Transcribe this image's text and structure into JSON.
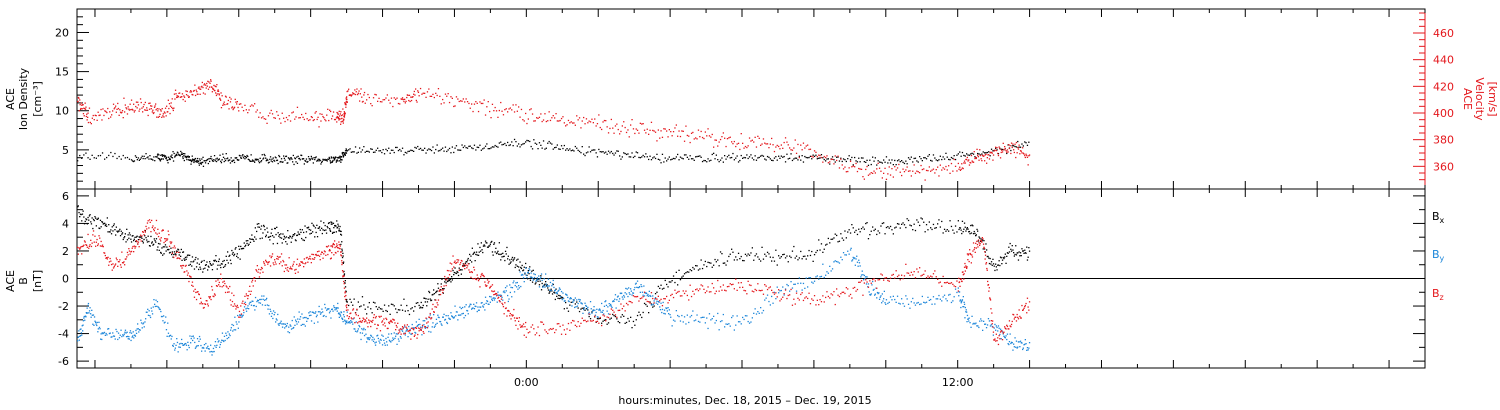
{
  "colors": {
    "black": "#000000",
    "red": "#e4171c",
    "blue": "#1c86d9"
  },
  "footer": {
    "xlabel": "hours:minutes, Dec. 18, 2015 – Dec. 19, 2015"
  },
  "chart_data": [
    {
      "type": "scatter",
      "title": "",
      "xlabel": "hours:minutes, Dec. 18, 2015 – Dec. 19, 2015",
      "x_range_hours": [
        -12.5,
        25
      ],
      "x_ticks": [
        {
          "value": 0,
          "label": "0:00"
        },
        {
          "value": 12,
          "label": "12:00"
        }
      ],
      "y_left": {
        "label_lines": [
          "ACE",
          "Ion Density",
          "[cm⁻³]"
        ],
        "range": [
          0,
          23
        ],
        "ticks": [
          5,
          10,
          15,
          20
        ]
      },
      "y_right": {
        "label_lines": [
          "ACE",
          "Velocity",
          "[km/s]"
        ],
        "range": [
          343,
          478
        ],
        "ticks": [
          360,
          380,
          400,
          420,
          440,
          460
        ]
      },
      "series": [
        {
          "axis": "left",
          "color": "#000000",
          "points": [
            [
              -12.5,
              4.2
            ],
            [
              -11,
              4.0
            ],
            [
              -10.3,
              4.1
            ],
            [
              -10,
              4.0
            ],
            [
              -9.6,
              4.5
            ],
            [
              -9.3,
              3.8
            ],
            [
              -9.0,
              3.5
            ],
            [
              -8.5,
              4.0
            ],
            [
              -8,
              3.9
            ],
            [
              -7.5,
              4.0
            ],
            [
              -7,
              3.9
            ],
            [
              -6.5,
              3.8
            ],
            [
              -6,
              3.8
            ],
            [
              -5.5,
              3.9
            ],
            [
              -5.2,
              3.9
            ],
            [
              -5.0,
              5.0
            ],
            [
              -4,
              5.0
            ],
            [
              -3,
              5.1
            ],
            [
              -2,
              5.3
            ],
            [
              -1,
              5.4
            ],
            [
              0,
              6.0
            ],
            [
              1,
              5.2
            ],
            [
              2,
              4.8
            ],
            [
              3,
              4.2
            ],
            [
              4,
              4.0
            ],
            [
              5,
              4.0
            ],
            [
              6,
              4.2
            ],
            [
              7,
              4.0
            ],
            [
              8,
              4.0
            ],
            [
              9,
              3.8
            ],
            [
              10,
              3.6
            ],
            [
              11,
              3.8
            ],
            [
              12,
              4.3
            ],
            [
              13,
              4.8
            ],
            [
              14,
              6.0
            ]
          ]
        },
        {
          "axis": "right",
          "color": "#e4171c",
          "points": [
            [
              -12.5,
              409
            ],
            [
              -12.2,
              397
            ],
            [
              -11.5,
              403
            ],
            [
              -11,
              405
            ],
            [
              -10.5,
              404
            ],
            [
              -10.1,
              401
            ],
            [
              -9.7,
              414
            ],
            [
              -9.2,
              416
            ],
            [
              -8.8,
              422
            ],
            [
              -8.5,
              411
            ],
            [
              -8,
              404
            ],
            [
              -7,
              398
            ],
            [
              -6,
              398
            ],
            [
              -5.3,
              397
            ],
            [
              -5.1,
              397
            ],
            [
              -5,
              414
            ],
            [
              -4.5,
              413
            ],
            [
              -3.5,
              410
            ],
            [
              -3,
              414
            ],
            [
              -2,
              410
            ],
            [
              -1,
              404
            ],
            [
              0,
              399
            ],
            [
              1,
              397
            ],
            [
              2,
              392
            ],
            [
              3,
              389
            ],
            [
              4,
              385
            ],
            [
              5,
              382
            ],
            [
              6,
              379
            ],
            [
              7,
              377
            ],
            [
              8,
              371
            ],
            [
              9,
              358
            ],
            [
              10,
              356
            ],
            [
              11,
              357
            ],
            [
              12,
              360
            ],
            [
              12.5,
              366
            ],
            [
              13,
              370
            ],
            [
              13.5,
              375
            ],
            [
              14,
              366
            ]
          ]
        }
      ]
    },
    {
      "type": "scatter",
      "title": "",
      "xlabel": "hours:minutes, Dec. 18, 2015 – Dec. 19, 2015",
      "x_range_hours": [
        -12.5,
        25
      ],
      "x_ticks": [
        {
          "value": 0,
          "label": "0:00"
        },
        {
          "value": 12,
          "label": "12:00"
        }
      ],
      "y": {
        "label_lines": [
          "ACE",
          "B",
          "[nT]"
        ],
        "range": [
          -6.5,
          6.5
        ],
        "ticks": [
          -6,
          -4,
          -2,
          0,
          2,
          4,
          6
        ],
        "zero_line": true
      },
      "legend": {
        "placement": "right",
        "entries": [
          {
            "base": "B",
            "sub": "x",
            "color": "#000000"
          },
          {
            "base": "B",
            "sub": "y",
            "color": "#1c86d9"
          },
          {
            "base": "B",
            "sub": "z",
            "color": "#e4171c"
          }
        ]
      },
      "series": [
        {
          "name": "Bx",
          "color": "#000000",
          "points": [
            [
              -12.5,
              4.8
            ],
            [
              -12,
              4.2
            ],
            [
              -11.5,
              3.6
            ],
            [
              -11,
              3.0
            ],
            [
              -10.5,
              2.8
            ],
            [
              -10,
              2.2
            ],
            [
              -9.5,
              1.5
            ],
            [
              -9,
              1.0
            ],
            [
              -8.5,
              1.2
            ],
            [
              -8,
              2.0
            ],
            [
              -7.5,
              3.5
            ],
            [
              -7,
              3.2
            ],
            [
              -6.5,
              3.0
            ],
            [
              -6,
              3.6
            ],
            [
              -5.5,
              3.8
            ],
            [
              -5.2,
              3.8
            ],
            [
              -5,
              -1.8
            ],
            [
              -4,
              -2.2
            ],
            [
              -3,
              -2.0
            ],
            [
              -2.5,
              -1.0
            ],
            [
              -2,
              0.5
            ],
            [
              -1.5,
              1.8
            ],
            [
              -1,
              2.5
            ],
            [
              -0.5,
              1.5
            ],
            [
              0,
              0.5
            ],
            [
              0.5,
              -0.5
            ],
            [
              1,
              -1.5
            ],
            [
              2,
              -2.8
            ],
            [
              3,
              -3.0
            ],
            [
              4,
              0.0
            ],
            [
              5,
              1.0
            ],
            [
              6,
              1.8
            ],
            [
              7,
              1.5
            ],
            [
              8,
              2.0
            ],
            [
              9,
              3.5
            ],
            [
              10,
              3.8
            ],
            [
              11,
              3.8
            ],
            [
              12,
              3.7
            ],
            [
              12.5,
              3.5
            ],
            [
              13,
              0.8
            ],
            [
              13.5,
              2.2
            ],
            [
              14,
              1.8
            ]
          ]
        },
        {
          "name": "By",
          "color": "#1c86d9",
          "points": [
            [
              -12.5,
              -4.5
            ],
            [
              -12.2,
              -2.0
            ],
            [
              -11.8,
              -4.0
            ],
            [
              -11.2,
              -4.2
            ],
            [
              -10.8,
              -3.8
            ],
            [
              -10.3,
              -1.5
            ],
            [
              -9.8,
              -5.0
            ],
            [
              -9.3,
              -4.5
            ],
            [
              -8.8,
              -5.2
            ],
            [
              -8.3,
              -4.0
            ],
            [
              -7.8,
              -2.0
            ],
            [
              -7.3,
              -1.5
            ],
            [
              -6.8,
              -3.5
            ],
            [
              -6.3,
              -3.0
            ],
            [
              -5.8,
              -2.5
            ],
            [
              -5.3,
              -2.2
            ],
            [
              -5,
              -3.0
            ],
            [
              -4.5,
              -4.2
            ],
            [
              -4,
              -4.5
            ],
            [
              -3.5,
              -4.0
            ],
            [
              -3,
              -3.5
            ],
            [
              -2.5,
              -3.0
            ],
            [
              -2,
              -2.5
            ],
            [
              -1.5,
              -2.0
            ],
            [
              -1,
              -1.5
            ],
            [
              -0.5,
              -1.0
            ],
            [
              0,
              0.5
            ],
            [
              0.5,
              -0.2
            ],
            [
              1,
              -1.2
            ],
            [
              1.5,
              -1.8
            ],
            [
              2,
              -2.5
            ],
            [
              2.5,
              -1.5
            ],
            [
              3,
              -0.5
            ],
            [
              3.5,
              -1.5
            ],
            [
              4,
              -2.8
            ],
            [
              5,
              -3.0
            ],
            [
              6,
              -3.2
            ],
            [
              7,
              -1.0
            ],
            [
              8,
              0.0
            ],
            [
              9,
              2.0
            ],
            [
              9.5,
              -0.5
            ],
            [
              10,
              -1.5
            ],
            [
              11,
              -1.8
            ],
            [
              12,
              -1.0
            ],
            [
              12.3,
              -3.0
            ],
            [
              13,
              -3.5
            ],
            [
              13.5,
              -4.5
            ],
            [
              14,
              -5.0
            ]
          ]
        },
        {
          "name": "Bz",
          "color": "#e4171c",
          "points": [
            [
              -12.5,
              2.0
            ],
            [
              -12,
              3.0
            ],
            [
              -11.5,
              1.0
            ],
            [
              -11,
              2.0
            ],
            [
              -10.5,
              4.0
            ],
            [
              -10,
              3.0
            ],
            [
              -9.5,
              0.5
            ],
            [
              -9,
              -2.0
            ],
            [
              -8.5,
              0.0
            ],
            [
              -8,
              -2.5
            ],
            [
              -7.5,
              0.5
            ],
            [
              -7,
              1.5
            ],
            [
              -6.5,
              0.8
            ],
            [
              -6,
              1.5
            ],
            [
              -5.5,
              2.0
            ],
            [
              -5.2,
              2.5
            ],
            [
              -5,
              -2.5
            ],
            [
              -4.5,
              -3.0
            ],
            [
              -4,
              -3.2
            ],
            [
              -3.5,
              -3.5
            ],
            [
              -3,
              -4.2
            ],
            [
              -2.5,
              -1.5
            ],
            [
              -2,
              1.5
            ],
            [
              -1.5,
              0.5
            ],
            [
              -1,
              -0.5
            ],
            [
              -0.5,
              -2.5
            ],
            [
              0,
              -3.8
            ],
            [
              1,
              -3.5
            ],
            [
              2,
              -3.0
            ],
            [
              3,
              -1.5
            ],
            [
              4,
              -1.2
            ],
            [
              5,
              -0.8
            ],
            [
              6,
              -0.5
            ],
            [
              7,
              -1.0
            ],
            [
              8,
              -1.5
            ],
            [
              9,
              -1.0
            ],
            [
              10,
              0.3
            ],
            [
              11,
              0.5
            ],
            [
              12,
              -0.5
            ],
            [
              12.3,
              1.5
            ],
            [
              12.7,
              3.0
            ],
            [
              13,
              -4.5
            ],
            [
              13.5,
              -3.0
            ],
            [
              14,
              -1.8
            ]
          ]
        }
      ]
    }
  ]
}
